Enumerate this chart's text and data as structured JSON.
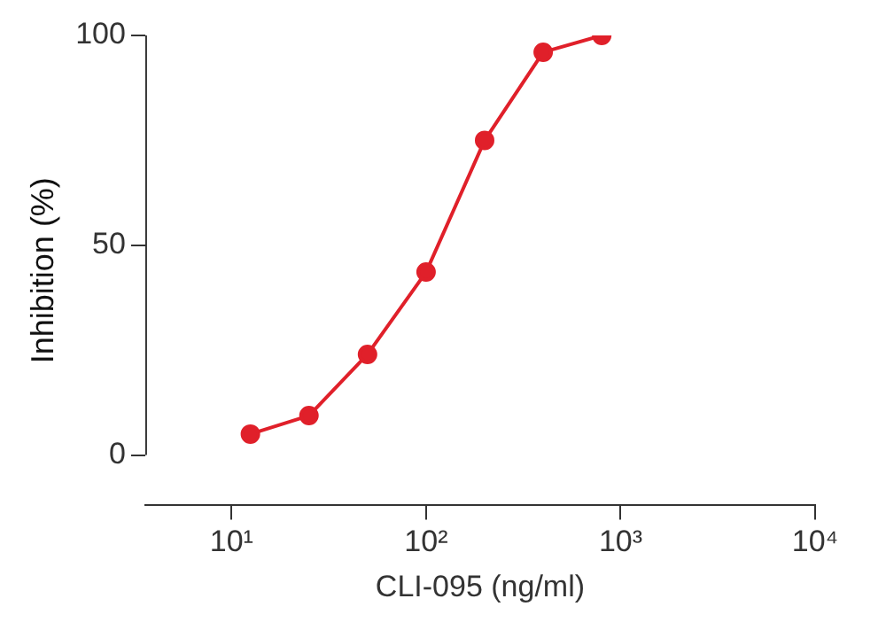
{
  "chart_data": {
    "type": "line",
    "xlabel": "CLI-095 (ng/ml)",
    "ylabel": "Inhibition (%)",
    "x": [
      12.5,
      25,
      50,
      100,
      200,
      400,
      800
    ],
    "series": [
      {
        "color": "#e0202a",
        "values": [
          5,
          9.4,
          24,
          43.6,
          75,
          96,
          100
        ]
      }
    ],
    "log": "x",
    "xlim": [
      3.6,
      10000
    ],
    "xticks": [
      {
        "value": 10,
        "label": "10¹"
      },
      {
        "value": 100,
        "label": "10²"
      },
      {
        "value": 1000,
        "label": "10³"
      },
      {
        "value": 10000,
        "label": "10⁴"
      }
    ],
    "ylim": [
      -12,
      100
    ],
    "yticks": [
      0,
      50,
      100
    ],
    "grid": false,
    "legend": false,
    "marker": "circle",
    "line_style": "solid"
  }
}
